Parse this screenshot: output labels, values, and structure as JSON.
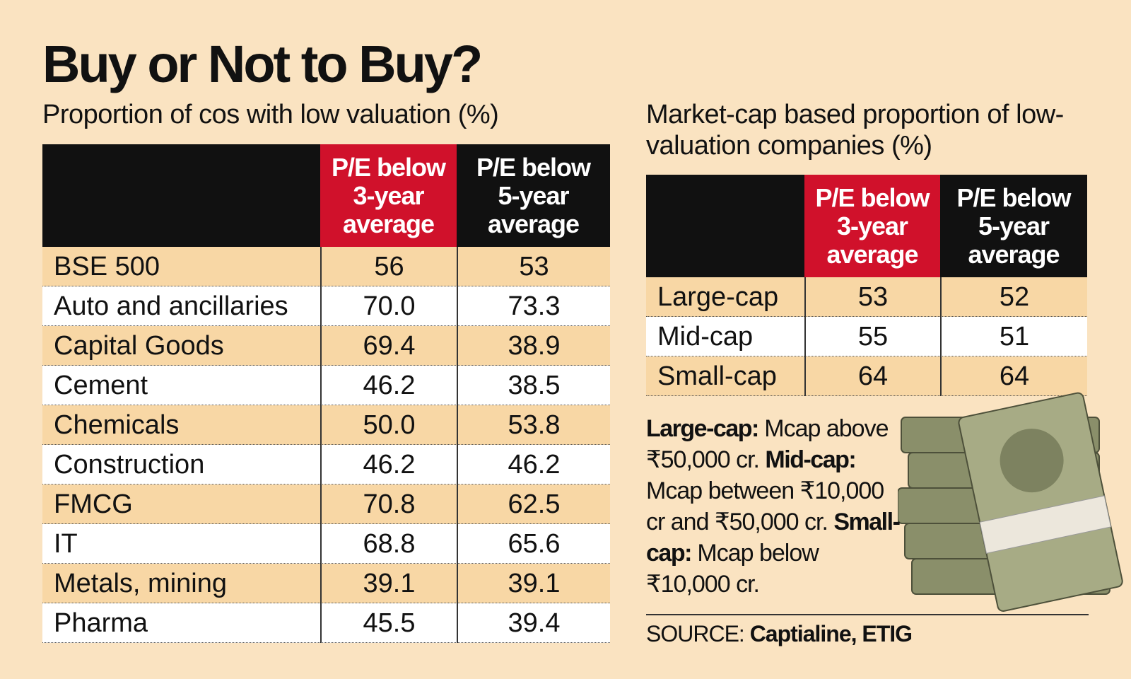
{
  "header": {
    "title": "Buy or Not to Buy?"
  },
  "left_table": {
    "subtitle": "Proportion of cos with low valuation (%)",
    "columns": [
      [
        "P/E below",
        "3-year",
        "average"
      ],
      [
        "P/E below",
        "5-year",
        "average"
      ]
    ],
    "rows": [
      [
        "BSE 500",
        "56",
        "53"
      ],
      [
        "Auto and ancillaries",
        "70.0",
        "73.3"
      ],
      [
        "Capital Goods",
        "69.4",
        "38.9"
      ],
      [
        "Cement",
        "46.2",
        "38.5"
      ],
      [
        "Chemicals",
        "50.0",
        "53.8"
      ],
      [
        "Construction",
        "46.2",
        "46.2"
      ],
      [
        "FMCG",
        "70.8",
        "62.5"
      ],
      [
        "IT",
        "68.8",
        "65.6"
      ],
      [
        "Metals, mining",
        "39.1",
        "39.1"
      ],
      [
        "Pharma",
        "45.5",
        "39.4"
      ]
    ]
  },
  "right_table": {
    "subtitle": "Market-cap based proportion of low-valuation companies (%)",
    "columns": [
      [
        "P/E below",
        "3-year",
        "average"
      ],
      [
        "P/E below",
        "5-year",
        "average"
      ]
    ],
    "rows": [
      [
        "Large-cap",
        "53",
        "52"
      ],
      [
        "Mid-cap",
        "55",
        "51"
      ],
      [
        "Small-cap",
        "64",
        "64"
      ]
    ]
  },
  "notes": [
    {
      "term": "Large-cap:",
      "text": "Mcap above ₹50,000 cr."
    },
    {
      "term": "Mid-cap:",
      "text": "Mcap between ₹10,000 cr and ₹50,000 cr."
    },
    {
      "term": "Small-cap:",
      "text": "Mcap below ₹10,000 cr."
    }
  ],
  "source": {
    "label": "SOURCE:",
    "text": "Captialine, ETIG"
  }
}
